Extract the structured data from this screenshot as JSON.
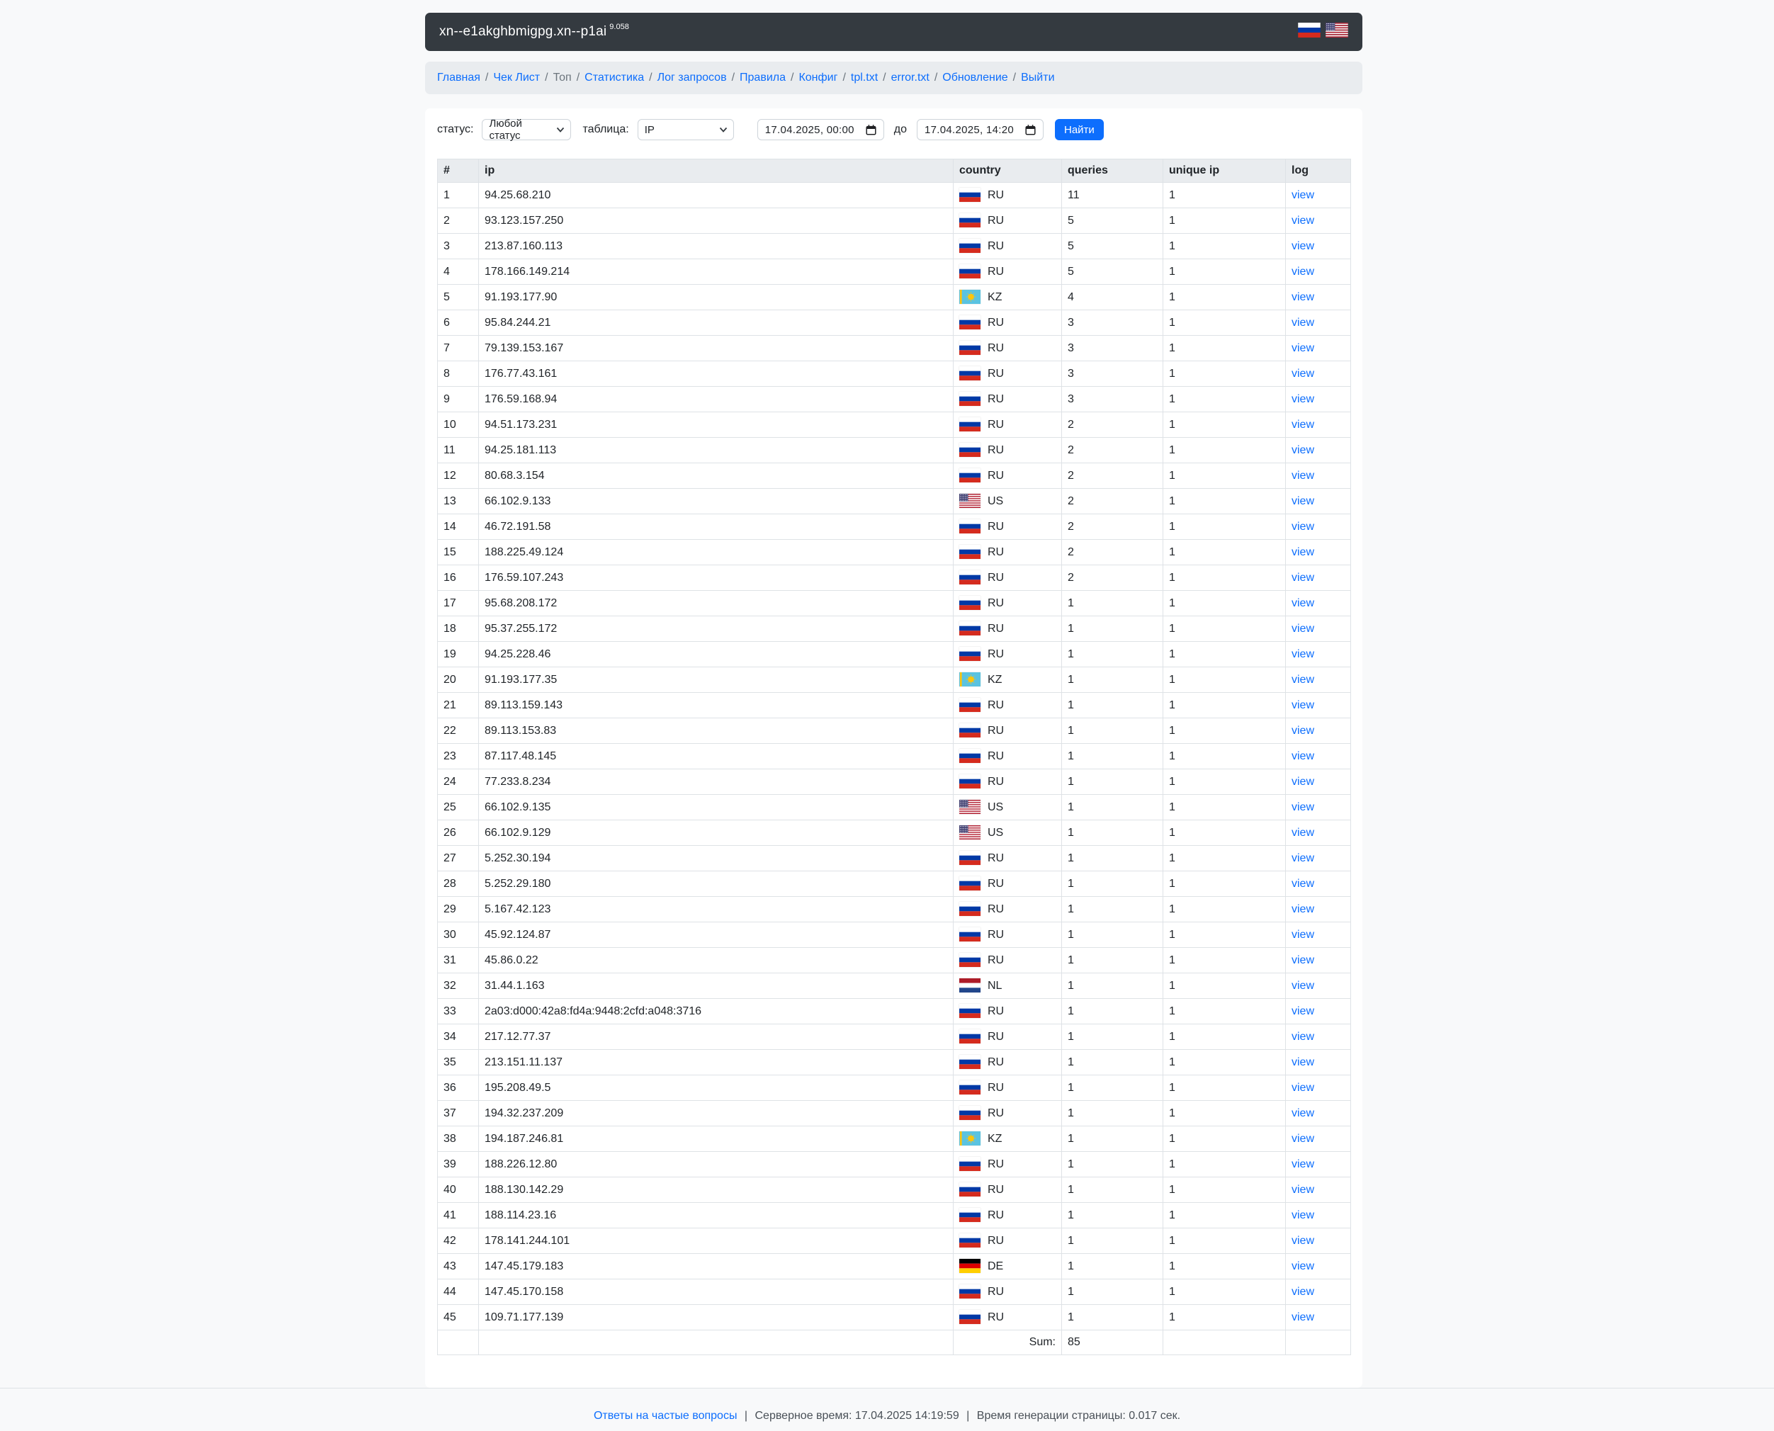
{
  "header": {
    "title": "xn--e1akghbmigpg.xn--p1ai",
    "version": "9.058",
    "lang_flags": [
      {
        "code": "ru",
        "name": "russian-flag"
      },
      {
        "code": "us",
        "name": "us-flag"
      }
    ]
  },
  "nav": {
    "separator": "/",
    "items": [
      {
        "label": "Главная",
        "type": "link"
      },
      {
        "label": "Чек Лист",
        "type": "link"
      },
      {
        "label": "Топ",
        "type": "current"
      },
      {
        "label": "Статистика",
        "type": "link"
      },
      {
        "label": "Лог запросов",
        "type": "link"
      },
      {
        "label": "Правила",
        "type": "link"
      },
      {
        "label": "Конфиг",
        "type": "link"
      },
      {
        "label": "tpl.txt",
        "type": "link"
      },
      {
        "label": "error.txt",
        "type": "link"
      },
      {
        "label": "Обновление",
        "type": "link"
      },
      {
        "label": "Выйти",
        "type": "link"
      }
    ]
  },
  "filters": {
    "status_label": "статус:",
    "status_value": "Любой статус",
    "table_label": "таблица:",
    "table_value": "IP",
    "date_from": "17.04.2025, 00:00",
    "to_label": "до",
    "date_to": "17.04.2025, 14:20",
    "search_button": "Найти"
  },
  "table": {
    "columns": [
      "#",
      "ip",
      "country",
      "queries",
      "unique ip",
      "log"
    ],
    "view_label": "view",
    "sum_label": "Sum:",
    "sum_value": "85",
    "rows": [
      {
        "n": "1",
        "ip": "94.25.68.210",
        "country": "RU",
        "queries": "11",
        "unique": "1"
      },
      {
        "n": "2",
        "ip": "93.123.157.250",
        "country": "RU",
        "queries": "5",
        "unique": "1"
      },
      {
        "n": "3",
        "ip": "213.87.160.113",
        "country": "RU",
        "queries": "5",
        "unique": "1"
      },
      {
        "n": "4",
        "ip": "178.166.149.214",
        "country": "RU",
        "queries": "5",
        "unique": "1"
      },
      {
        "n": "5",
        "ip": "91.193.177.90",
        "country": "KZ",
        "queries": "4",
        "unique": "1"
      },
      {
        "n": "6",
        "ip": "95.84.244.21",
        "country": "RU",
        "queries": "3",
        "unique": "1"
      },
      {
        "n": "7",
        "ip": "79.139.153.167",
        "country": "RU",
        "queries": "3",
        "unique": "1"
      },
      {
        "n": "8",
        "ip": "176.77.43.161",
        "country": "RU",
        "queries": "3",
        "unique": "1"
      },
      {
        "n": "9",
        "ip": "176.59.168.94",
        "country": "RU",
        "queries": "3",
        "unique": "1"
      },
      {
        "n": "10",
        "ip": "94.51.173.231",
        "country": "RU",
        "queries": "2",
        "unique": "1"
      },
      {
        "n": "11",
        "ip": "94.25.181.113",
        "country": "RU",
        "queries": "2",
        "unique": "1"
      },
      {
        "n": "12",
        "ip": "80.68.3.154",
        "country": "RU",
        "queries": "2",
        "unique": "1"
      },
      {
        "n": "13",
        "ip": "66.102.9.133",
        "country": "US",
        "queries": "2",
        "unique": "1"
      },
      {
        "n": "14",
        "ip": "46.72.191.58",
        "country": "RU",
        "queries": "2",
        "unique": "1"
      },
      {
        "n": "15",
        "ip": "188.225.49.124",
        "country": "RU",
        "queries": "2",
        "unique": "1"
      },
      {
        "n": "16",
        "ip": "176.59.107.243",
        "country": "RU",
        "queries": "2",
        "unique": "1"
      },
      {
        "n": "17",
        "ip": "95.68.208.172",
        "country": "RU",
        "queries": "1",
        "unique": "1"
      },
      {
        "n": "18",
        "ip": "95.37.255.172",
        "country": "RU",
        "queries": "1",
        "unique": "1"
      },
      {
        "n": "19",
        "ip": "94.25.228.46",
        "country": "RU",
        "queries": "1",
        "unique": "1"
      },
      {
        "n": "20",
        "ip": "91.193.177.35",
        "country": "KZ",
        "queries": "1",
        "unique": "1"
      },
      {
        "n": "21",
        "ip": "89.113.159.143",
        "country": "RU",
        "queries": "1",
        "unique": "1"
      },
      {
        "n": "22",
        "ip": "89.113.153.83",
        "country": "RU",
        "queries": "1",
        "unique": "1"
      },
      {
        "n": "23",
        "ip": "87.117.48.145",
        "country": "RU",
        "queries": "1",
        "unique": "1"
      },
      {
        "n": "24",
        "ip": "77.233.8.234",
        "country": "RU",
        "queries": "1",
        "unique": "1"
      },
      {
        "n": "25",
        "ip": "66.102.9.135",
        "country": "US",
        "queries": "1",
        "unique": "1"
      },
      {
        "n": "26",
        "ip": "66.102.9.129",
        "country": "US",
        "queries": "1",
        "unique": "1"
      },
      {
        "n": "27",
        "ip": "5.252.30.194",
        "country": "RU",
        "queries": "1",
        "unique": "1"
      },
      {
        "n": "28",
        "ip": "5.252.29.180",
        "country": "RU",
        "queries": "1",
        "unique": "1"
      },
      {
        "n": "29",
        "ip": "5.167.42.123",
        "country": "RU",
        "queries": "1",
        "unique": "1"
      },
      {
        "n": "30",
        "ip": "45.92.124.87",
        "country": "RU",
        "queries": "1",
        "unique": "1"
      },
      {
        "n": "31",
        "ip": "45.86.0.22",
        "country": "RU",
        "queries": "1",
        "unique": "1"
      },
      {
        "n": "32",
        "ip": "31.44.1.163",
        "country": "NL",
        "queries": "1",
        "unique": "1"
      },
      {
        "n": "33",
        "ip": "2a03:d000:42a8:fd4a:9448:2cfd:a048:3716",
        "country": "RU",
        "queries": "1",
        "unique": "1"
      },
      {
        "n": "34",
        "ip": "217.12.77.37",
        "country": "RU",
        "queries": "1",
        "unique": "1"
      },
      {
        "n": "35",
        "ip": "213.151.11.137",
        "country": "RU",
        "queries": "1",
        "unique": "1"
      },
      {
        "n": "36",
        "ip": "195.208.49.5",
        "country": "RU",
        "queries": "1",
        "unique": "1"
      },
      {
        "n": "37",
        "ip": "194.32.237.209",
        "country": "RU",
        "queries": "1",
        "unique": "1"
      },
      {
        "n": "38",
        "ip": "194.187.246.81",
        "country": "KZ",
        "queries": "1",
        "unique": "1"
      },
      {
        "n": "39",
        "ip": "188.226.12.80",
        "country": "RU",
        "queries": "1",
        "unique": "1"
      },
      {
        "n": "40",
        "ip": "188.130.142.29",
        "country": "RU",
        "queries": "1",
        "unique": "1"
      },
      {
        "n": "41",
        "ip": "188.114.23.16",
        "country": "RU",
        "queries": "1",
        "unique": "1"
      },
      {
        "n": "42",
        "ip": "178.141.244.101",
        "country": "RU",
        "queries": "1",
        "unique": "1"
      },
      {
        "n": "43",
        "ip": "147.45.179.183",
        "country": "DE",
        "queries": "1",
        "unique": "1"
      },
      {
        "n": "44",
        "ip": "147.45.170.158",
        "country": "RU",
        "queries": "1",
        "unique": "1"
      },
      {
        "n": "45",
        "ip": "109.71.177.139",
        "country": "RU",
        "queries": "1",
        "unique": "1"
      }
    ]
  },
  "footer": {
    "link": "Ответы на частые вопросы",
    "separator": "|",
    "server_time_label": "Серверное время:",
    "server_time": "17.04.2025 14:19:59",
    "gen_label": "Время генерации страницы:",
    "gen_time": "0.017 сек."
  },
  "colors": {
    "accent_blue": "#0d6efd",
    "titlebar_bg": "#343a40",
    "nav_bg": "#e9ecef",
    "table_header_bg": "#e9ecef",
    "table_border": "#dee2e6",
    "page_bg": "#f8f9fa",
    "card_bg": "#ffffff",
    "muted_text": "#6c757d"
  }
}
